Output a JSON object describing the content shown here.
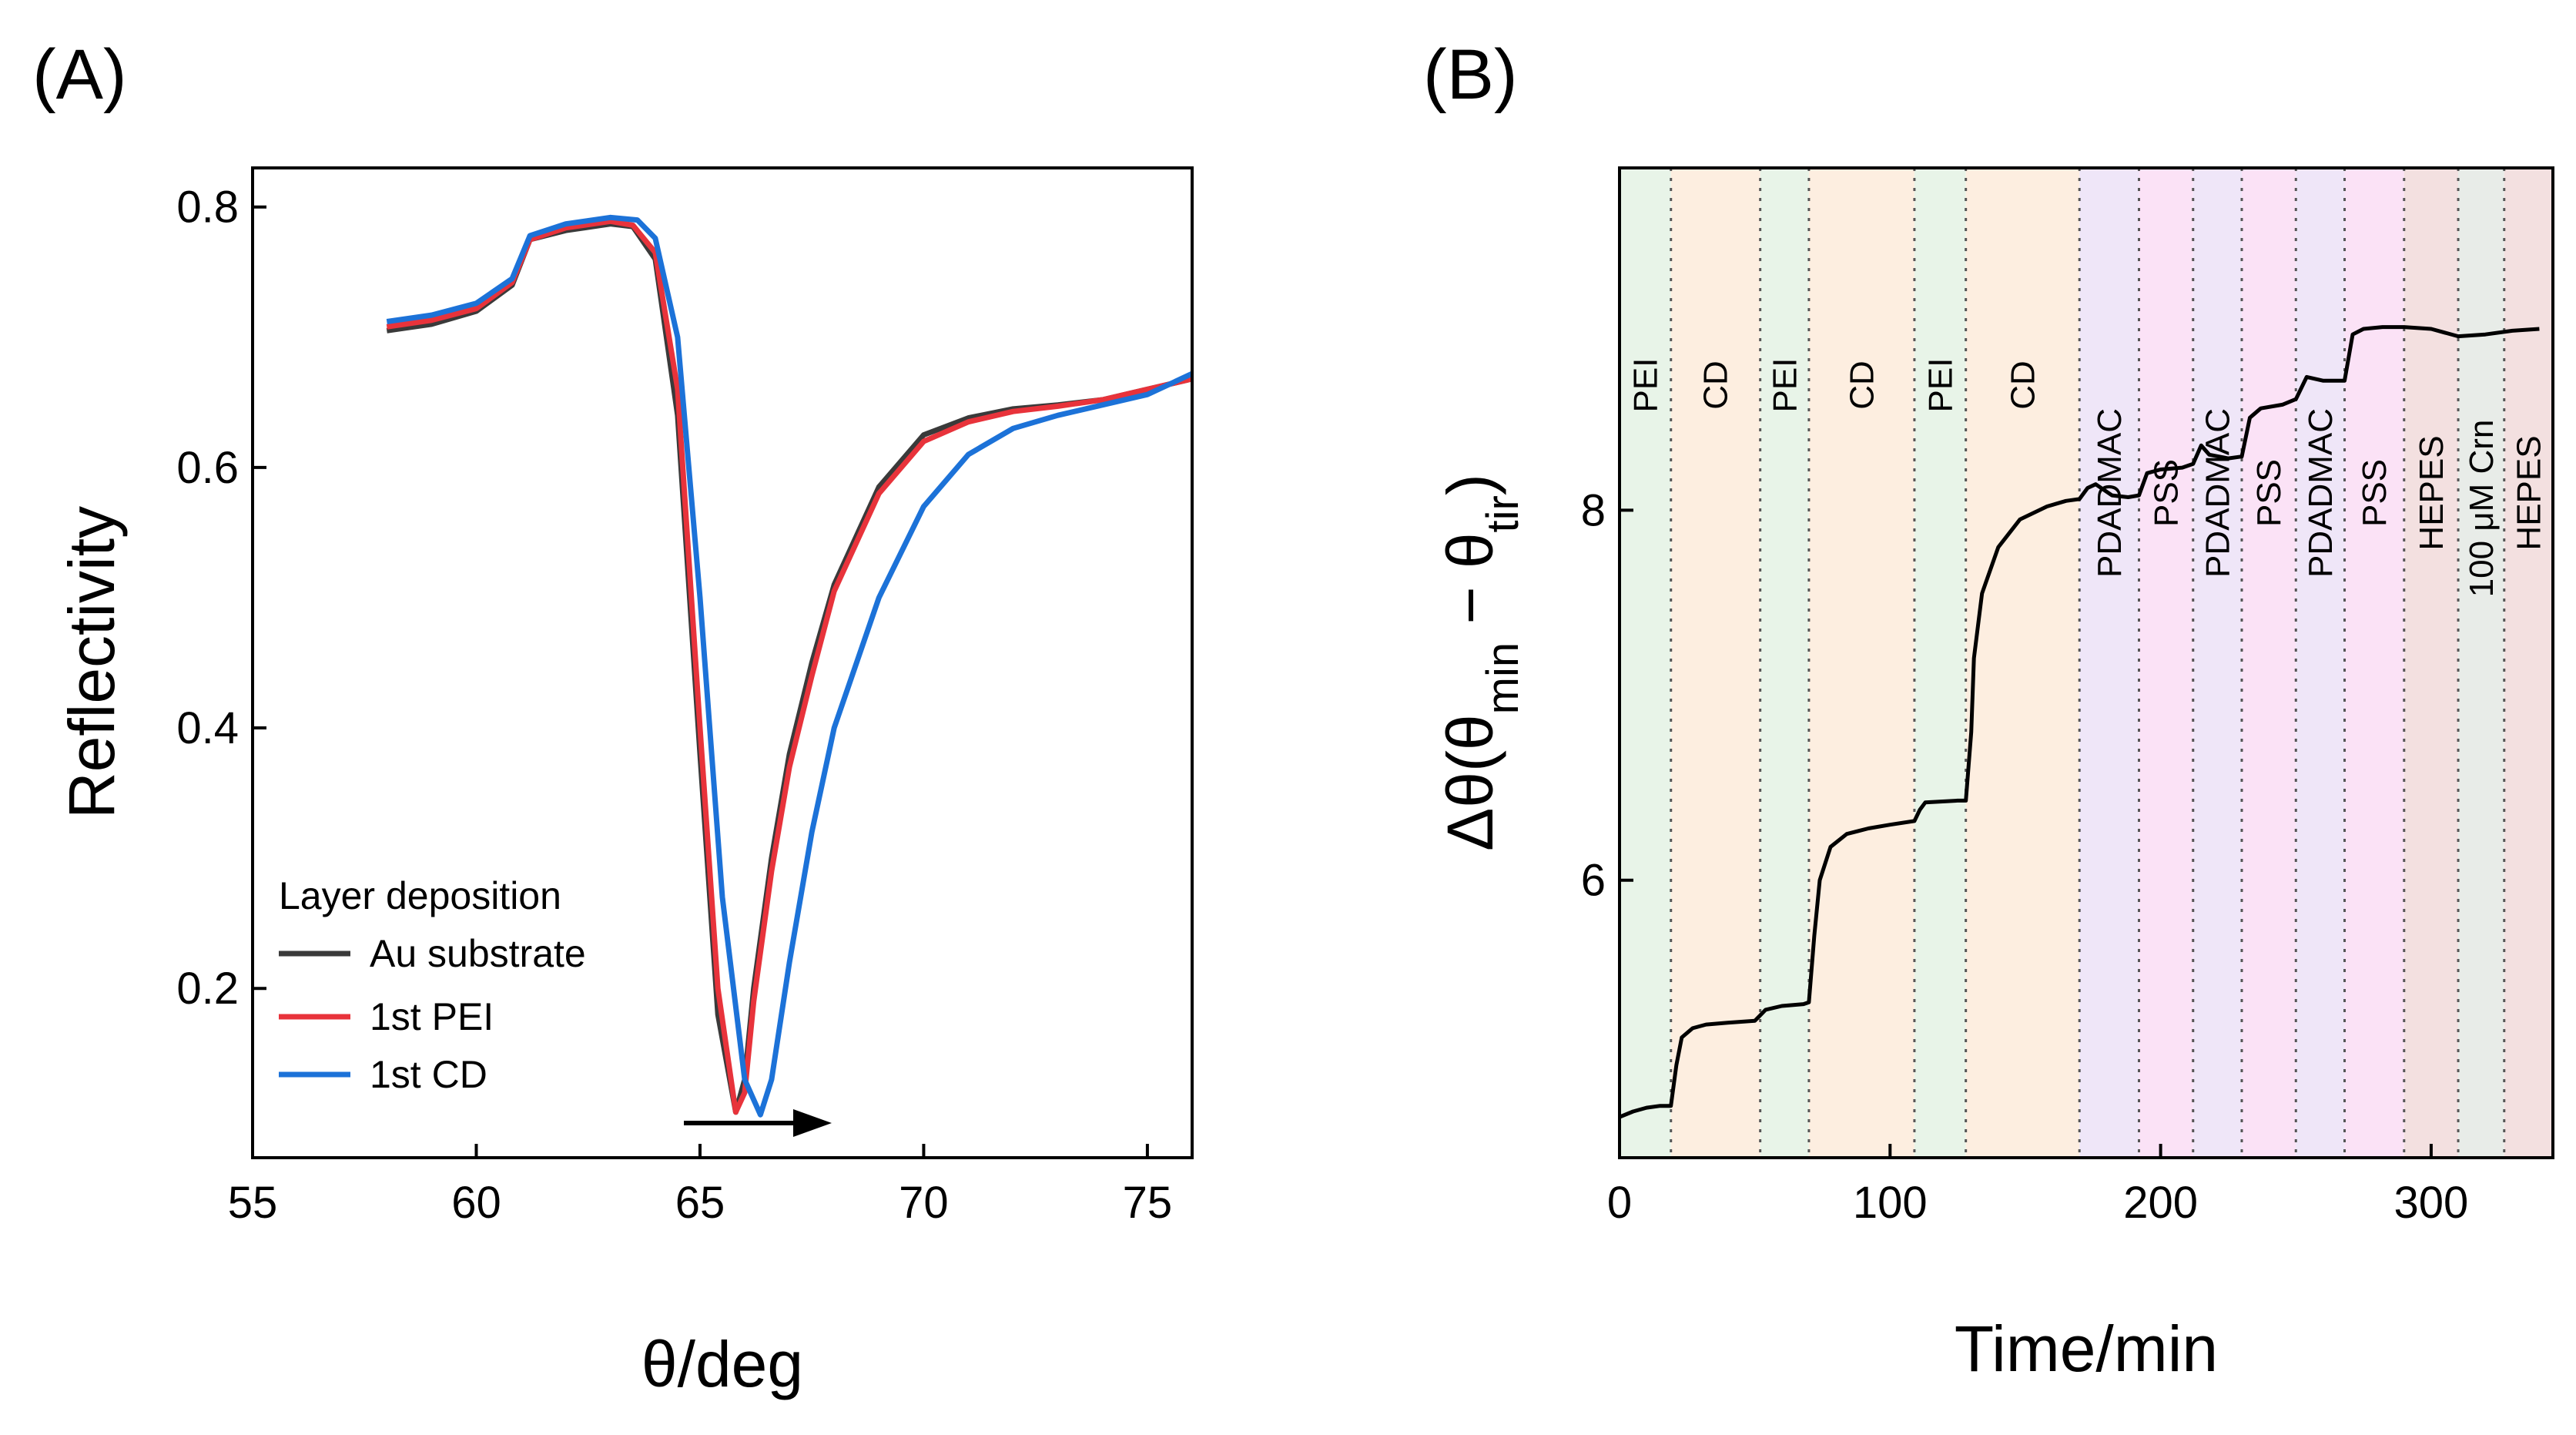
{
  "chart_data": [
    {
      "type": "line",
      "panel_label": "(A)",
      "xlabel": "θ/deg",
      "ylabel": "Reflectivity",
      "xlim": [
        55,
        76
      ],
      "ylim": [
        0.07,
        0.83
      ],
      "xticks": [
        "55",
        "60",
        "65",
        "70",
        "75"
      ],
      "yticks": [
        "0.2",
        "0.4",
        "0.6",
        "0.8"
      ],
      "legend": {
        "title": "Layer deposition",
        "position": "lower-left"
      },
      "annotation": "arrow from 64.5 to 67.7 deg indicating shift of minimum",
      "series": [
        {
          "name": "Au substrate",
          "color": "#3a3a3a",
          "x": [
            58,
            59,
            60,
            60.8,
            61.2,
            62,
            63,
            63.5,
            64,
            64.5,
            65,
            65.4,
            65.8,
            66,
            66.2,
            66.6,
            67,
            67.5,
            68,
            69,
            70,
            71,
            72,
            73,
            74,
            75,
            76
          ],
          "y": [
            0.705,
            0.71,
            0.72,
            0.74,
            0.775,
            0.782,
            0.787,
            0.785,
            0.76,
            0.64,
            0.38,
            0.18,
            0.105,
            0.13,
            0.2,
            0.3,
            0.38,
            0.45,
            0.51,
            0.585,
            0.625,
            0.638,
            0.645,
            0.648,
            0.652,
            0.66,
            0.668
          ]
        },
        {
          "name": "1st PEI",
          "color": "#e8333b",
          "x": [
            58,
            59,
            60,
            60.8,
            61.2,
            62,
            63,
            63.5,
            64,
            64.5,
            65,
            65.4,
            65.8,
            66,
            66.2,
            66.6,
            67,
            67.5,
            68,
            69,
            70,
            71,
            72,
            73,
            74,
            75,
            76
          ],
          "y": [
            0.708,
            0.713,
            0.722,
            0.742,
            0.775,
            0.784,
            0.789,
            0.786,
            0.765,
            0.66,
            0.4,
            0.2,
            0.105,
            0.12,
            0.19,
            0.29,
            0.37,
            0.44,
            0.505,
            0.58,
            0.62,
            0.635,
            0.643,
            0.647,
            0.652,
            0.66,
            0.668
          ]
        },
        {
          "name": "1st CD",
          "color": "#1c72d8",
          "x": [
            58,
            59,
            60,
            60.8,
            61.2,
            62,
            63,
            63.6,
            64,
            64.5,
            65,
            65.5,
            66,
            66.35,
            66.6,
            67,
            67.5,
            68,
            69,
            70,
            71,
            72,
            73,
            74,
            75,
            76
          ],
          "y": [
            0.712,
            0.717,
            0.726,
            0.745,
            0.778,
            0.787,
            0.792,
            0.79,
            0.776,
            0.7,
            0.5,
            0.27,
            0.13,
            0.103,
            0.13,
            0.22,
            0.32,
            0.4,
            0.5,
            0.57,
            0.61,
            0.63,
            0.64,
            0.648,
            0.656,
            0.672
          ]
        }
      ]
    },
    {
      "type": "line",
      "panel_label": "(B)",
      "xlabel": "Time/min",
      "ylabel_main": "Δθ(θ",
      "ylabel_sub1": "min",
      "ylabel_dash": " − θ",
      "ylabel_sub2": "tir",
      "ylabel_end": ")",
      "xlim": [
        0,
        345
      ],
      "ylim": [
        4.5,
        9.85
      ],
      "xticks": [
        "0",
        "100",
        "200",
        "300"
      ],
      "yticks": [
        "6",
        "8"
      ],
      "phases": [
        {
          "label": "PEI",
          "start": 0,
          "end": 19,
          "color": "#e8f4e8"
        },
        {
          "label": "CD",
          "start": 19,
          "end": 52,
          "color": "#fdeee0"
        },
        {
          "label": "PEI",
          "start": 52,
          "end": 70,
          "color": "#e8f4e8"
        },
        {
          "label": "CD",
          "start": 70,
          "end": 109,
          "color": "#fdeee0"
        },
        {
          "label": "PEI",
          "start": 109,
          "end": 128,
          "color": "#e8f4e8"
        },
        {
          "label": "CD",
          "start": 128,
          "end": 170,
          "color": "#fdeee0"
        },
        {
          "label": "PDADMAC",
          "start": 170,
          "end": 192,
          "color": "#efe6f8"
        },
        {
          "label": "PSS",
          "start": 192,
          "end": 212,
          "color": "#fbe2f6"
        },
        {
          "label": "PDADMAC",
          "start": 212,
          "end": 230,
          "color": "#efe6f8"
        },
        {
          "label": "PSS",
          "start": 230,
          "end": 250,
          "color": "#fbe2f6"
        },
        {
          "label": "PDADMAC",
          "start": 250,
          "end": 268,
          "color": "#efe6f8"
        },
        {
          "label": "PSS",
          "start": 268,
          "end": 290,
          "color": "#fbe2f6"
        },
        {
          "label": "HEPES",
          "start": 290,
          "end": 310,
          "color": "#f3e0e0"
        },
        {
          "label": "100 μM Crn",
          "start": 310,
          "end": 327,
          "color": "#e8ece8"
        },
        {
          "label": "HEPES",
          "start": 327,
          "end": 345,
          "color": "#f3e0e0"
        }
      ],
      "series": [
        {
          "name": "Δθ",
          "color": "#000000",
          "x": [
            0,
            5,
            10,
            15,
            19,
            21,
            23,
            27,
            32,
            40,
            50,
            52,
            54,
            60,
            68,
            70,
            72,
            74,
            78,
            84,
            92,
            100,
            109,
            111,
            113,
            125,
            128,
            130,
            131,
            134,
            140,
            148,
            158,
            165,
            170,
            173,
            176,
            182,
            188,
            192,
            195,
            200,
            208,
            212,
            215,
            218,
            225,
            230,
            233,
            237,
            245,
            250,
            254,
            260,
            268,
            271,
            275,
            282,
            290,
            300,
            310,
            320,
            330,
            340
          ],
          "y": [
            4.72,
            4.75,
            4.77,
            4.78,
            4.78,
            5.0,
            5.15,
            5.2,
            5.22,
            5.23,
            5.24,
            5.27,
            5.3,
            5.32,
            5.33,
            5.34,
            5.7,
            6.0,
            6.18,
            6.25,
            6.28,
            6.3,
            6.32,
            6.38,
            6.42,
            6.43,
            6.43,
            6.8,
            7.2,
            7.55,
            7.8,
            7.95,
            8.02,
            8.05,
            8.06,
            8.12,
            8.14,
            8.08,
            8.07,
            8.08,
            8.2,
            8.22,
            8.23,
            8.25,
            8.35,
            8.3,
            8.28,
            8.29,
            8.5,
            8.55,
            8.57,
            8.6,
            8.72,
            8.7,
            8.7,
            8.95,
            8.98,
            8.99,
            8.99,
            8.98,
            8.94,
            8.95,
            8.97,
            8.98
          ]
        }
      ]
    }
  ]
}
